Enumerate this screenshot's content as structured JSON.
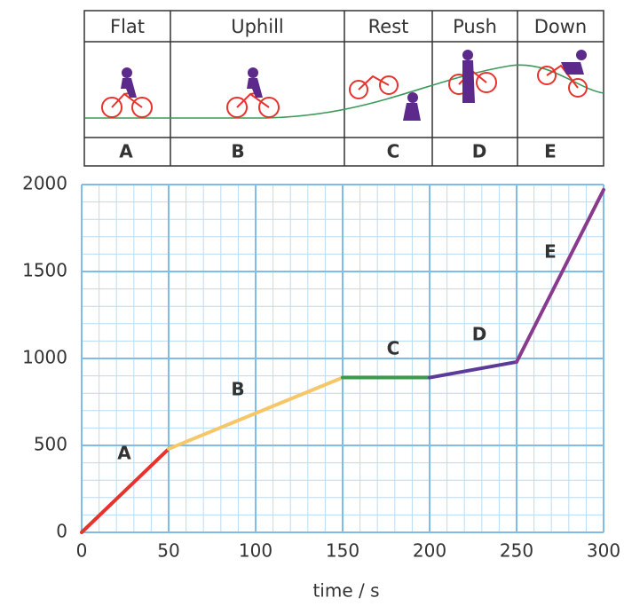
{
  "stages": [
    "Flat",
    "Uphill",
    "Rest",
    "Push",
    "Down"
  ],
  "chart_data": {
    "type": "line",
    "x_label": "time / s",
    "x": [
      0,
      50,
      150,
      200,
      250,
      300
    ],
    "series": [
      {
        "name": "A",
        "color": "#e8322c",
        "values": [
          0,
          480,
          null,
          null,
          null,
          null
        ]
      },
      {
        "name": "B",
        "color": "#f6c768",
        "values": [
          null,
          480,
          890,
          null,
          null,
          null
        ]
      },
      {
        "name": "C",
        "color": "#3c9a4c",
        "values": [
          null,
          null,
          890,
          890,
          null,
          null
        ]
      },
      {
        "name": "D",
        "color": "#5b3a98",
        "values": [
          null,
          null,
          null,
          890,
          980,
          null
        ]
      },
      {
        "name": "E",
        "color": "#8a3a8c",
        "values": [
          null,
          null,
          null,
          null,
          980,
          1970
        ]
      }
    ],
    "xlim": [
      0,
      300
    ],
    "xticks": [
      0,
      50,
      100,
      150,
      200,
      250,
      300
    ],
    "ylim": [
      0,
      2000
    ],
    "yticks": [
      0,
      500,
      1000,
      1500,
      2000
    ],
    "grid": true
  }
}
